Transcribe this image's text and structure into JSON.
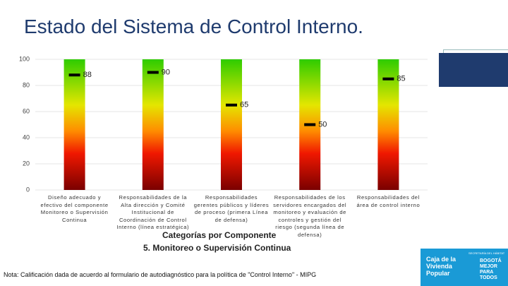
{
  "title": "Estado del Sistema de Control Interno.",
  "chart_data": {
    "type": "bar",
    "categories": [
      "Diseño adecuado y efectivo del componente Monitoreo o Supervisión Continua",
      "Responsabilidades de la Alta dirección y Comité Institucional de Coordinación de Control Interno (línea estratégica)",
      "Responsabilidades gerentes públicos y líderes de proceso (primera Línea de defensa)",
      "Responsabilidades de los servidores encargados del monitoreo y evaluación de controles y gestión del riesgo (segunda línea de defensa)",
      "Responsabilidades del área de control interno"
    ],
    "values": [
      88,
      90,
      65,
      50,
      85
    ],
    "ylim": [
      0,
      100
    ],
    "yticks": [
      0,
      20,
      40,
      60,
      80,
      100
    ],
    "grid": true,
    "x_label": "Categorías por Componente",
    "subtitle": "5. Monitoreo o Supervisión Continua"
  },
  "note": "Nota: Calificación dada de acuerdo al formulario de autodiagnóstico para la política de \"Control Interno\" - MIPG",
  "logo": {
    "entity": "Caja de la Vivienda Popular",
    "secretaria": "SECRETARÍA DEL HÁBITAT",
    "slogan": "BOGOTÁ MEJOR PARA TODOS"
  }
}
